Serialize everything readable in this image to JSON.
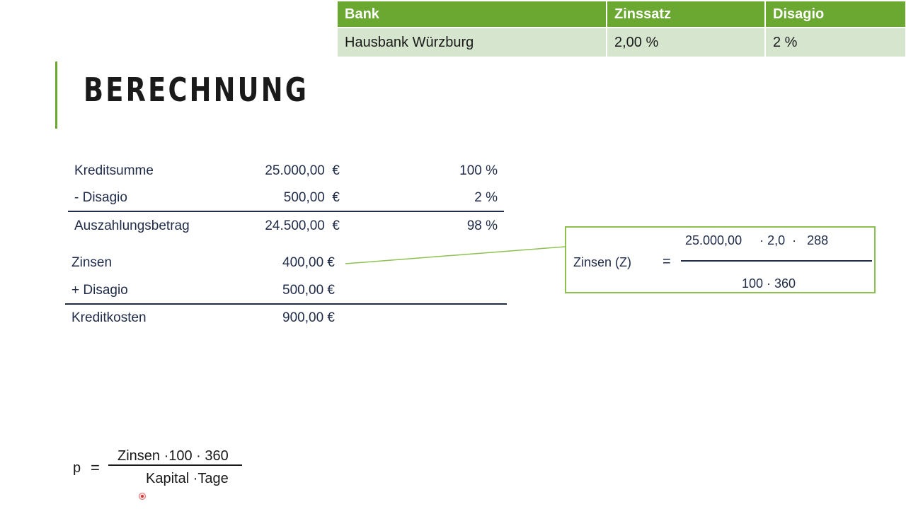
{
  "bank_table": {
    "headers": [
      "Bank",
      "Zinssatz",
      "Disagio"
    ],
    "row": [
      "Hausbank Würzburg",
      "2,00 %",
      "2 %"
    ],
    "header_color": "#6aa832",
    "row_color": "#d6e5cd"
  },
  "title": "BERECHNUNG",
  "calc": {
    "kreditsumme": {
      "label": "Kreditsumme",
      "amount": "25.000,00  €",
      "percent": "100 %"
    },
    "disagio": {
      "label": "- Disagio",
      "amount": "500,00  €",
      "percent": "2 %"
    },
    "auszahlung": {
      "label": "Auszahlungsbetrag",
      "amount": "24.500,00  €",
      "percent": "98 %"
    },
    "zinsen": {
      "label": "Zinsen",
      "amount": "400,00 €"
    },
    "plus_disagio": {
      "label": "+ Disagio",
      "amount": "500,00 €"
    },
    "kreditkosten": {
      "label": "Kreditkosten",
      "amount": "900,00 €"
    }
  },
  "zinsen_formula": {
    "label": "Zinsen (Z)",
    "equals": "=",
    "numerator": "25.000,00     · 2,0  ·   288",
    "denominator": "100 · 360",
    "border_color": "#8cc152"
  },
  "p_formula": {
    "label": "p",
    "equals": "=",
    "numerator": "Zinsen ·100 · 360",
    "denominator": "Kapital ·Tage"
  }
}
